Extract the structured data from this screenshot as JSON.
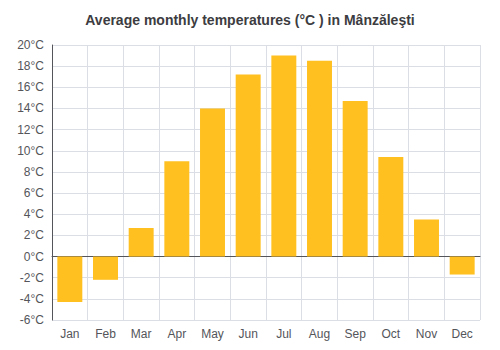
{
  "chart_data": {
    "type": "bar",
    "title": "Average monthly temperatures (°C ) in Mânzăleşti",
    "categories": [
      "Jan",
      "Feb",
      "Mar",
      "Apr",
      "May",
      "Jun",
      "Jul",
      "Aug",
      "Sep",
      "Oct",
      "Nov",
      "Dec"
    ],
    "values": [
      -4.3,
      -2.2,
      2.7,
      9.0,
      14.0,
      17.2,
      19.0,
      18.5,
      14.7,
      9.4,
      3.5,
      -1.7
    ],
    "color": "#FFC020",
    "ylim": [
      -6,
      20
    ],
    "yticks": [
      {
        "value": -6,
        "label": "-6°C"
      },
      {
        "value": -4,
        "label": "-4°C"
      },
      {
        "value": -2,
        "label": "-2°C"
      },
      {
        "value": 0,
        "label": "0°C"
      },
      {
        "value": 2,
        "label": "2°C"
      },
      {
        "value": 4,
        "label": "4°C"
      },
      {
        "value": 6,
        "label": "6°C"
      },
      {
        "value": 8,
        "label": "8°C"
      },
      {
        "value": 10,
        "label": "10°C"
      },
      {
        "value": 12,
        "label": "12°C"
      },
      {
        "value": 14,
        "label": "14°C"
      },
      {
        "value": 16,
        "label": "16°C"
      },
      {
        "value": 18,
        "label": "18°C"
      },
      {
        "value": 20,
        "label": "20°C"
      }
    ],
    "grid": true
  }
}
